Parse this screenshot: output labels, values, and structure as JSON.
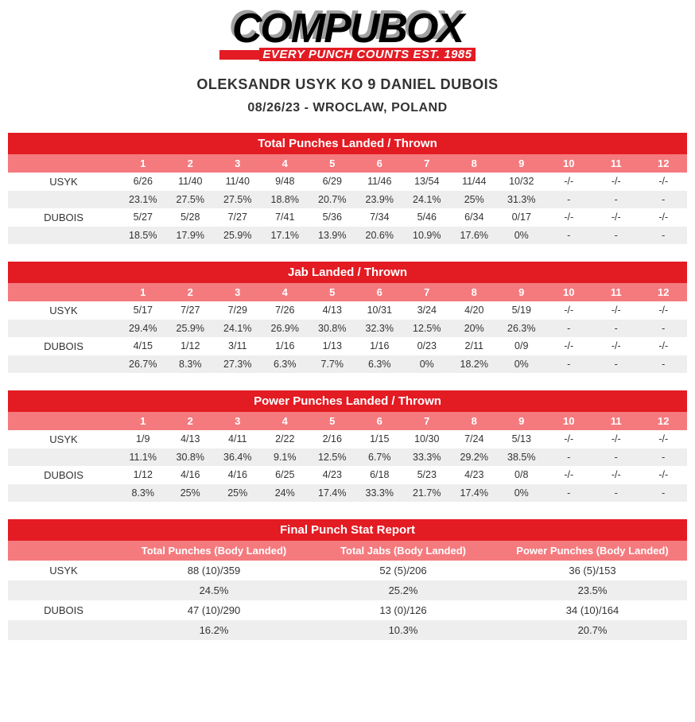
{
  "logo": {
    "main": "COMPUBOX",
    "tagline": "EVERY PUNCH COUNTS EST. 1985"
  },
  "headline": {
    "title": "OLEKSANDR USYK KO 9 DANIEL DUBOIS",
    "subtitle": "08/26/23 - WROCLAW, POLAND"
  },
  "fighters": {
    "a": "USYK",
    "b": "DUBOIS"
  },
  "rounds": [
    "1",
    "2",
    "3",
    "4",
    "5",
    "6",
    "7",
    "8",
    "9",
    "10",
    "11",
    "12"
  ],
  "tables": {
    "total": {
      "title": "Total Punches Landed / Thrown",
      "usyk_lt": [
        "6/26",
        "11/40",
        "11/40",
        "9/48",
        "6/29",
        "11/46",
        "13/54",
        "11/44",
        "10/32",
        "-/-",
        "-/-",
        "-/-"
      ],
      "usyk_pct": [
        "23.1%",
        "27.5%",
        "27.5%",
        "18.8%",
        "20.7%",
        "23.9%",
        "24.1%",
        "25%",
        "31.3%",
        "-",
        "-",
        "-"
      ],
      "dub_lt": [
        "5/27",
        "5/28",
        "7/27",
        "7/41",
        "5/36",
        "7/34",
        "5/46",
        "6/34",
        "0/17",
        "-/-",
        "-/-",
        "-/-"
      ],
      "dub_pct": [
        "18.5%",
        "17.9%",
        "25.9%",
        "17.1%",
        "13.9%",
        "20.6%",
        "10.9%",
        "17.6%",
        "0%",
        "-",
        "-",
        "-"
      ]
    },
    "jab": {
      "title": "Jab Landed / Thrown",
      "usyk_lt": [
        "5/17",
        "7/27",
        "7/29",
        "7/26",
        "4/13",
        "10/31",
        "3/24",
        "4/20",
        "5/19",
        "-/-",
        "-/-",
        "-/-"
      ],
      "usyk_pct": [
        "29.4%",
        "25.9%",
        "24.1%",
        "26.9%",
        "30.8%",
        "32.3%",
        "12.5%",
        "20%",
        "26.3%",
        "-",
        "-",
        "-"
      ],
      "dub_lt": [
        "4/15",
        "1/12",
        "3/11",
        "1/16",
        "1/13",
        "1/16",
        "0/23",
        "2/11",
        "0/9",
        "-/-",
        "-/-",
        "-/-"
      ],
      "dub_pct": [
        "26.7%",
        "8.3%",
        "27.3%",
        "6.3%",
        "7.7%",
        "6.3%",
        "0%",
        "18.2%",
        "0%",
        "-",
        "-",
        "-"
      ]
    },
    "power": {
      "title": "Power Punches Landed / Thrown",
      "usyk_lt": [
        "1/9",
        "4/13",
        "4/11",
        "2/22",
        "2/16",
        "1/15",
        "10/30",
        "7/24",
        "5/13",
        "-/-",
        "-/-",
        "-/-"
      ],
      "usyk_pct": [
        "11.1%",
        "30.8%",
        "36.4%",
        "9.1%",
        "12.5%",
        "6.7%",
        "33.3%",
        "29.2%",
        "38.5%",
        "-",
        "-",
        "-"
      ],
      "dub_lt": [
        "1/12",
        "4/16",
        "4/16",
        "6/25",
        "4/23",
        "6/18",
        "5/23",
        "4/23",
        "0/8",
        "-/-",
        "-/-",
        "-/-"
      ],
      "dub_pct": [
        "8.3%",
        "25%",
        "25%",
        "24%",
        "17.4%",
        "33.3%",
        "21.7%",
        "17.4%",
        "0%",
        "-",
        "-",
        "-"
      ]
    }
  },
  "final": {
    "title": "Final Punch Stat Report",
    "cols": [
      "Total Punches (Body Landed)",
      "Total Jabs (Body Landed)",
      "Power Punches (Body Landed)"
    ],
    "usyk_vals": [
      "88 (10)/359",
      "52 (5)/206",
      "36 (5)/153"
    ],
    "usyk_pct": [
      "24.5%",
      "25.2%",
      "23.5%"
    ],
    "dub_vals": [
      "47 (10)/290",
      "13 (0)/126",
      "34 (10)/164"
    ],
    "dub_pct": [
      "16.2%",
      "10.3%",
      "20.7%"
    ]
  },
  "style": {
    "brand_red": "#e31b23",
    "header_pink": "#f47a7e",
    "row_grey": "#eeeeee",
    "background": "#ffffff",
    "text": "#333333"
  }
}
